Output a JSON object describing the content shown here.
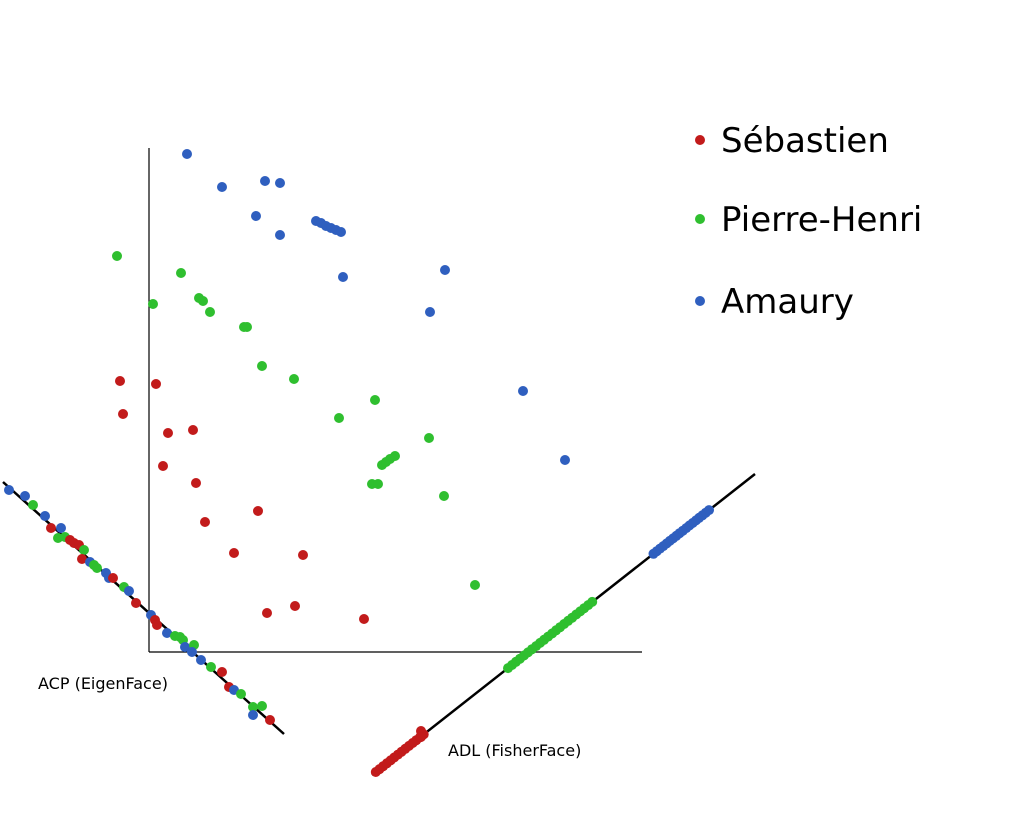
{
  "legend": [
    {
      "label": "Sébastien",
      "color": "#c21b1b"
    },
    {
      "label": "Pierre-Henri",
      "color": "#2fbf2f"
    },
    {
      "label": "Amaury",
      "color": "#2f5fbf"
    }
  ],
  "labels": {
    "acp": "ACP (EigenFace)",
    "adl": "ADL (FisherFace)"
  }
}
